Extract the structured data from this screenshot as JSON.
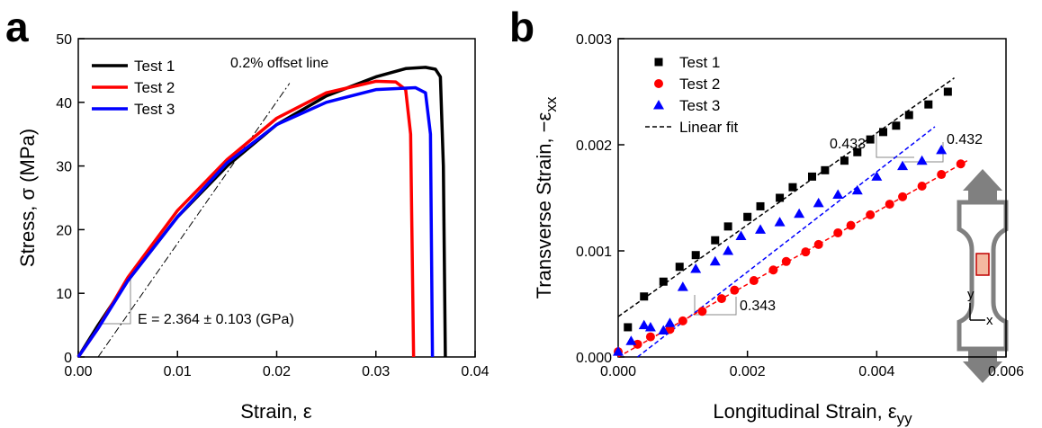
{
  "chart_data": [
    {
      "type": "line",
      "panel_label": "a",
      "x_label": "Strain, ε",
      "y_label": "Stress, σ (MPa)",
      "xlim": [
        0,
        0.04
      ],
      "xticks": [
        {
          "value": 0,
          "label": "0.00"
        },
        0.01,
        0.02,
        0.03,
        {
          "value": 0.04,
          "label": "0.04"
        }
      ],
      "ylim": [
        0,
        50
      ],
      "yticks": [
        0,
        10,
        20,
        30,
        40,
        50
      ],
      "legend": "upper left",
      "series": [
        {
          "name": "Test 1",
          "color": "#000000",
          "x": [
            0,
            0.002,
            0.005,
            0.01,
            0.015,
            0.02,
            0.025,
            0.03,
            0.033,
            0.035,
            0.036,
            0.0365,
            0.0368,
            0.037
          ],
          "values": [
            0,
            5,
            12,
            22,
            30,
            36.5,
            41,
            44,
            45.3,
            45.5,
            45.2,
            44,
            30,
            0
          ]
        },
        {
          "name": "Test 2",
          "color": "#ff0000",
          "x": [
            0,
            0.002,
            0.005,
            0.01,
            0.015,
            0.02,
            0.025,
            0.03,
            0.032,
            0.033,
            0.0335,
            0.0338
          ],
          "values": [
            0,
            4.5,
            12.5,
            23,
            31,
            37.5,
            41.5,
            43.3,
            43.2,
            42,
            35,
            0
          ]
        },
        {
          "name": "Test 3",
          "color": "#0000ff",
          "x": [
            0,
            0.002,
            0.005,
            0.01,
            0.015,
            0.02,
            0.025,
            0.03,
            0.034,
            0.035,
            0.0355,
            0.0357
          ],
          "values": [
            0,
            4.5,
            12,
            22,
            30.5,
            36.5,
            40,
            42,
            42.3,
            41.5,
            35,
            0
          ]
        }
      ],
      "offset_line": {
        "x": [
          0.002,
          0.0213
        ],
        "values": [
          0,
          43
        ]
      },
      "annotations": [
        "0.2% offset line",
        "E = 2.364 ± 0.103 (GPa)"
      ]
    },
    {
      "type": "scatter",
      "panel_label": "b",
      "x_label": "Longitudinal Strain, ε",
      "x_label_sub": "yy",
      "y_label": "Transverse Strain, −ε",
      "y_label_sub": "xx",
      "xlim": [
        0,
        0.006
      ],
      "xticks": [
        {
          "value": 0,
          "label": "0.000"
        },
        0.002,
        0.004,
        0.006
      ],
      "ylim": [
        0,
        0.003
      ],
      "yticks": [
        {
          "value": 0,
          "label": "0.000"
        },
        0.001,
        0.002,
        0.003
      ],
      "legend": "upper left",
      "series": [
        {
          "name": "Test 1",
          "color": "#000000",
          "marker": "square",
          "x": [
            0.00015,
            0.0004,
            0.0007,
            0.00095,
            0.0012,
            0.0015,
            0.0017,
            0.002,
            0.0022,
            0.0025,
            0.0027,
            0.003,
            0.0032,
            0.0035,
            0.0037,
            0.0039,
            0.0041,
            0.0043,
            0.0045,
            0.0048,
            0.0051
          ],
          "values": [
            0.00028,
            0.00057,
            0.00071,
            0.00085,
            0.00096,
            0.0011,
            0.00123,
            0.00132,
            0.00142,
            0.0015,
            0.0016,
            0.0017,
            0.00176,
            0.00185,
            0.00193,
            0.00205,
            0.00212,
            0.00218,
            0.00228,
            0.00238,
            0.0025
          ]
        },
        {
          "name": "Test 2",
          "color": "#ff0000",
          "marker": "circle",
          "x": [
            0,
            0.0003,
            0.0005,
            0.0008,
            0.001,
            0.0013,
            0.0016,
            0.0018,
            0.0021,
            0.0024,
            0.0026,
            0.0029,
            0.0031,
            0.0034,
            0.0036,
            0.0039,
            0.0042,
            0.0044,
            0.0047,
            0.005,
            0.0053
          ],
          "values": [
            5e-05,
            0.00012,
            0.00019,
            0.00026,
            0.00034,
            0.00043,
            0.00055,
            0.00063,
            0.00072,
            0.00082,
            0.0009,
            0.00099,
            0.00106,
            0.00117,
            0.00124,
            0.00134,
            0.00144,
            0.00151,
            0.00161,
            0.00172,
            0.00182
          ]
        },
        {
          "name": "Test 3",
          "color": "#0000ff",
          "marker": "triangle",
          "x": [
            0,
            0.0002,
            0.0004,
            0.0005,
            0.0007,
            0.0008,
            0.001,
            0.0012,
            0.0015,
            0.0017,
            0.0019,
            0.0022,
            0.0025,
            0.0028,
            0.0031,
            0.0034,
            0.0037,
            0.004,
            0.0044,
            0.0047,
            0.005
          ],
          "values": [
            5e-05,
            0.00015,
            0.0003,
            0.00028,
            0.00025,
            0.00032,
            0.00066,
            0.00083,
            0.0009,
            0.001,
            0.00114,
            0.0012,
            0.00127,
            0.00135,
            0.00145,
            0.00153,
            0.00157,
            0.0017,
            0.0018,
            0.00185,
            0.00195
          ]
        }
      ],
      "fit_name": "Linear fit",
      "fits": [
        {
          "color": "#000000",
          "x": [
            0,
            0.0052
          ],
          "values": [
            0.00038,
            0.00263
          ]
        },
        {
          "color": "#0000ff",
          "x": [
            0.0003,
            0.0049
          ],
          "values": [
            0,
            0.00217
          ]
        },
        {
          "color": "#ff0000",
          "x": [
            0,
            0.0054
          ],
          "values": [
            0,
            0.00185
          ]
        }
      ],
      "annotations": [
        "0.433",
        "0.432",
        "0.343"
      ],
      "inset_labels": [
        "y",
        "x"
      ]
    }
  ]
}
